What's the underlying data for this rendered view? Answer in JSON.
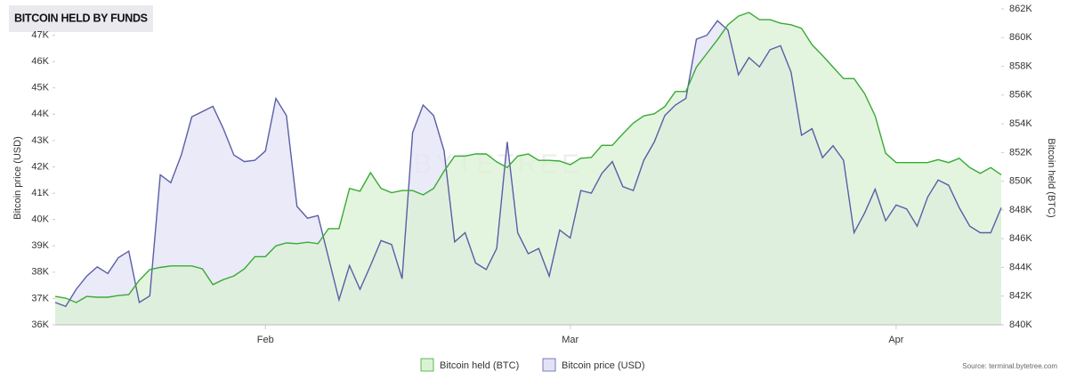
{
  "chart_data": {
    "type": "area",
    "title": "BITCOIN HELD BY FUNDS",
    "watermark": "BYTETREE",
    "source": "Source: terminal.bytetree.com",
    "y_label": "Bitcoin price (USD)",
    "y2_label": "Bitcoin held (BTC)",
    "legend": "bottom",
    "grid": false,
    "categories": [
      null,
      null,
      null,
      null,
      null,
      null,
      null,
      null,
      null,
      null,
      null,
      null,
      null,
      null,
      null,
      null,
      null,
      null,
      null,
      null,
      "Feb",
      null,
      null,
      null,
      null,
      null,
      null,
      null,
      null,
      null,
      null,
      null,
      null,
      null,
      null,
      null,
      null,
      null,
      null,
      null,
      null,
      null,
      null,
      null,
      null,
      null,
      null,
      null,
      null,
      "Mar",
      null,
      null,
      null,
      null,
      null,
      null,
      null,
      null,
      null,
      null,
      null,
      null,
      null,
      null,
      null,
      null,
      null,
      null,
      null,
      null,
      null,
      null,
      null,
      null,
      null,
      null,
      null,
      null,
      null,
      null,
      "Apr",
      null,
      null,
      null,
      null,
      null,
      null,
      null,
      null,
      null,
      null
    ],
    "ylim": [
      36000,
      48000
    ],
    "yticks": [
      {
        "value": 36000,
        "label": "36K"
      },
      {
        "value": 37000,
        "label": "37K"
      },
      {
        "value": 38000,
        "label": "38K"
      },
      {
        "value": 39000,
        "label": "39K"
      },
      {
        "value": 40000,
        "label": "40K"
      },
      {
        "value": 41000,
        "label": "41K"
      },
      {
        "value": 42000,
        "label": "42K"
      },
      {
        "value": 43000,
        "label": "43K"
      },
      {
        "value": 44000,
        "label": "44K"
      },
      {
        "value": 45000,
        "label": "45K"
      },
      {
        "value": 46000,
        "label": "46K"
      },
      {
        "value": 47000,
        "label": "47K"
      }
    ],
    "y2lim": [
      840000,
      862000
    ],
    "y2ticks": [
      {
        "value": 840000,
        "label": "840K"
      },
      {
        "value": 842000,
        "label": "842K"
      },
      {
        "value": 844000,
        "label": "844K"
      },
      {
        "value": 846000,
        "label": "846K"
      },
      {
        "value": 848000,
        "label": "848K"
      },
      {
        "value": 850000,
        "label": "850K"
      },
      {
        "value": 852000,
        "label": "852K"
      },
      {
        "value": 854000,
        "label": "854K"
      },
      {
        "value": 856000,
        "label": "856K"
      },
      {
        "value": 858000,
        "label": "858K"
      },
      {
        "value": 860000,
        "label": "860K"
      },
      {
        "value": 862000,
        "label": "862K"
      }
    ],
    "series": [
      {
        "name": "Bitcoin held (BTC)",
        "color": "#3aaa35",
        "fill_color": "#d9f2d4",
        "axis": "y2",
        "values": [
          841980,
          841860,
          841550,
          841980,
          841920,
          841920,
          842040,
          842100,
          843100,
          843850,
          844000,
          844100,
          844100,
          844100,
          843900,
          842800,
          843150,
          843400,
          843900,
          844750,
          844750,
          845500,
          845700,
          845650,
          845750,
          845650,
          846700,
          846700,
          849500,
          849300,
          850600,
          849500,
          849200,
          849350,
          849350,
          849050,
          849500,
          850700,
          851750,
          851750,
          851900,
          851900,
          851350,
          850950,
          851750,
          851900,
          851450,
          851450,
          851400,
          851150,
          851600,
          851650,
          852500,
          852500,
          853300,
          854050,
          854550,
          854700,
          855200,
          856250,
          856250,
          857950,
          858900,
          859850,
          860900,
          861500,
          861750,
          861250,
          861250,
          861000,
          860900,
          860650,
          859500,
          858750,
          857950,
          857150,
          857150,
          856100,
          854550,
          851950,
          851300,
          851300,
          851300,
          851300,
          851500,
          851300,
          851600,
          850950,
          850550,
          850950,
          850450
        ]
      },
      {
        "name": "Bitcoin price (USD)",
        "color": "#5b5ea6",
        "fill_color": "#e3e3f6",
        "values": [
          36850,
          36700,
          37350,
          37850,
          38200,
          37950,
          38550,
          38800,
          36850,
          37100,
          41700,
          41400,
          42450,
          43900,
          44100,
          44300,
          43450,
          42450,
          42200,
          42250,
          42600,
          44600,
          43950,
          40500,
          40050,
          40150,
          38550,
          36950,
          38250,
          37350,
          38250,
          39200,
          39050,
          37750,
          43300,
          44350,
          43950,
          42600,
          39150,
          39500,
          38350,
          38100,
          38900,
          42950,
          39500,
          38700,
          38900,
          37850,
          39600,
          39300,
          41100,
          41000,
          41750,
          42200,
          41250,
          41100,
          42250,
          42950,
          43950,
          44350,
          44600,
          46850,
          47000,
          47550,
          47200,
          45500,
          46150,
          45800,
          46450,
          46600,
          45600,
          43200,
          43450,
          42350,
          42800,
          42250,
          39500,
          40250,
          41150,
          39950,
          40550,
          40400,
          39750,
          40850,
          41500,
          41300,
          40450,
          39750,
          39500,
          39500,
          40450
        ]
      }
    ]
  }
}
